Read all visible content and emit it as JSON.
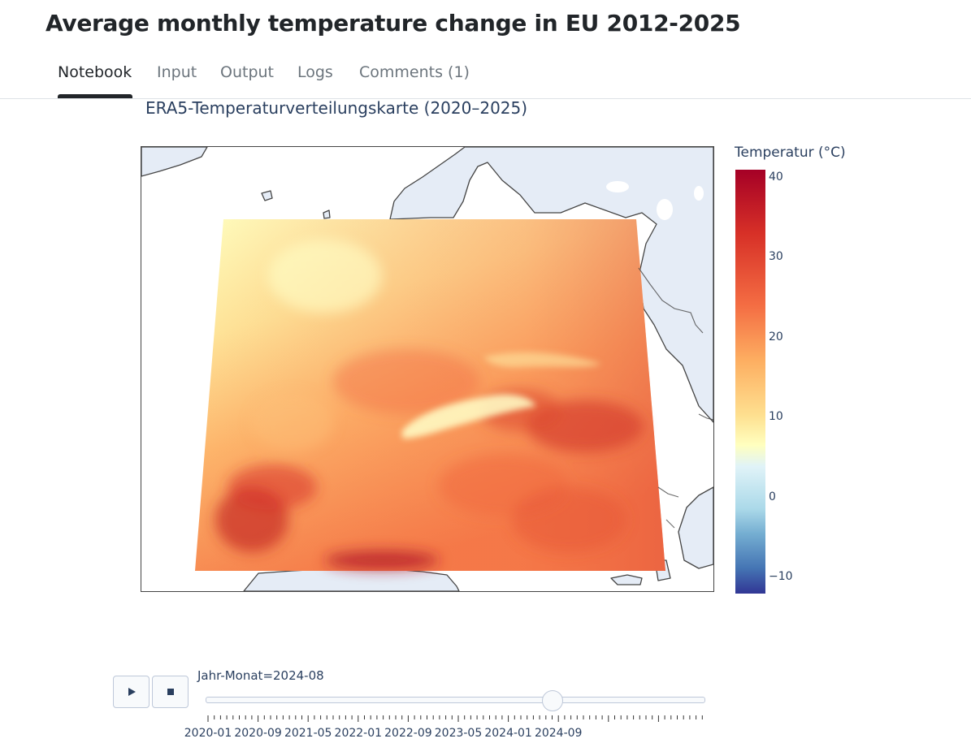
{
  "page": {
    "title": "Average monthly temperature change in EU 2012-2025"
  },
  "tabs": [
    {
      "label": "Notebook",
      "active": true
    },
    {
      "label": "Input",
      "active": false
    },
    {
      "label": "Output",
      "active": false
    },
    {
      "label": "Logs",
      "active": false
    },
    {
      "label": "Comments (1)",
      "active": false
    }
  ],
  "figure": {
    "title": "ERA5-Temperaturverteilungskarte (2020–2025)"
  },
  "colorbar": {
    "title": "Temperatur (°C)",
    "colorscale": "RdYlBu_r",
    "range": [
      -12,
      41
    ],
    "ticks": [
      "40",
      "30",
      "20",
      "10",
      "0",
      "−10"
    ]
  },
  "colors": {
    "accent": "#212529",
    "muted_tab": "#6c757d",
    "plot_text": "#2a3f5f",
    "land": "#e5ecf6",
    "coast": "#444444"
  },
  "controls": {
    "play_icon": "play-icon",
    "stop_icon": "stop-icon"
  },
  "slider": {
    "prefix": "Jahr-Monat=",
    "current": "2024-08",
    "current_label": "Jahr-Monat=2024-08",
    "steps": [
      "2020-01",
      "2020-09",
      "2021-05",
      "2022-01",
      "2022-09",
      "2023-05",
      "2024-01",
      "2024-09"
    ],
    "current_index": 55,
    "total_steps": 80
  }
}
